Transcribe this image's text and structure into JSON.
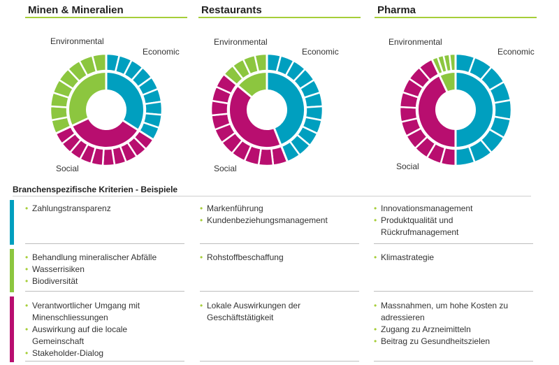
{
  "colors": {
    "economic": "#009fbf",
    "environmental": "#8cc63f",
    "social": "#b80e6f",
    "accent": "#a6ce39"
  },
  "panels": [
    {
      "title": "Minen & Mineralien",
      "labels": {
        "environmental": "Environmental",
        "economic": "Economic",
        "social": "Social"
      },
      "inner_share": {
        "economic": 0.34,
        "social": 0.34,
        "environmental": 0.32
      },
      "outer_segments": {
        "economic": 9,
        "social": 10,
        "environmental": 8
      }
    },
    {
      "title": "Restaurants",
      "labels": {
        "environmental": "Environmental",
        "economic": "Economic",
        "social": "Social"
      },
      "inner_share": {
        "economic": 0.44,
        "social": 0.42,
        "environmental": 0.14
      },
      "outer_segments": {
        "economic": 11,
        "social": 10,
        "environmental": 4
      }
    },
    {
      "title": "Pharma",
      "labels": {
        "environmental": "Environmental",
        "economic": "Economic",
        "social": "Social"
      },
      "inner_share": {
        "economic": 0.5,
        "social": 0.43,
        "environmental": 0.07
      },
      "outer_segments": {
        "economic": 9,
        "social": 10,
        "environmental": 4
      }
    }
  ],
  "section_title": "Branchenspezifische Kriterien - Beispiele",
  "criteria": {
    "economic": [
      [
        "Zahlungstransparenz"
      ],
      [
        "Markenführung",
        "Kundenbeziehungsmanagement"
      ],
      [
        "Innovationsmanagement",
        "Produktqualität und Rückrufmanagement"
      ]
    ],
    "environmental": [
      [
        "Behandlung mineralischer Abfälle",
        "Wasserrisiken",
        "Biodiversität"
      ],
      [
        "Rohstoffbeschaffung"
      ],
      [
        "Klimastrategie"
      ]
    ],
    "social": [
      [
        "Verantwortlicher Umgang mit Minenschliessungen",
        "Auswirkung auf die locale Gemeinschaft",
        "Stakeholder-Dialog"
      ],
      [
        "Lokale Auswirkungen der Geschäftstätigkeit"
      ],
      [
        "Massnahmen, um hohe Kosten zu adressieren",
        "Zugang zu Arzneimitteln",
        "Beitrag zu Gesundheitszielen"
      ]
    ]
  }
}
